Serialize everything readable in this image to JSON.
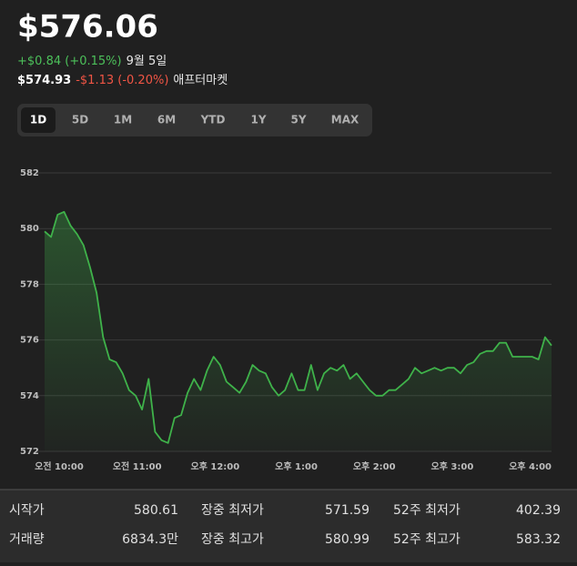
{
  "header": {
    "price": "$576.06",
    "change": "+$0.84 (+0.15%)",
    "date": "9월 5일",
    "after_price": "$574.93",
    "after_change": "-$1.13 (-0.20%)",
    "after_label": "애프터마켓"
  },
  "range_buttons": {
    "labels": [
      "1D",
      "5D",
      "1M",
      "6M",
      "YTD",
      "1Y",
      "5Y",
      "MAX"
    ],
    "selected": 0
  },
  "chart_data": {
    "type": "line",
    "color": "#3fb24a",
    "grid": true,
    "categories": [
      null,
      null,
      null,
      null,
      null,
      null,
      "오전 10:00",
      null,
      null,
      null,
      null,
      null,
      null,
      null,
      null,
      null,
      null,
      null,
      "오전 11:00",
      null,
      null,
      null,
      null,
      null,
      null,
      null,
      null,
      null,
      null,
      null,
      "오후 12:00",
      null,
      null,
      null,
      null,
      null,
      null,
      null,
      null,
      null,
      null,
      null,
      "오후 1:00",
      null,
      null,
      null,
      null,
      null,
      null,
      null,
      null,
      null,
      null,
      null,
      "오후 2:00",
      null,
      null,
      null,
      null,
      null,
      null,
      null,
      null,
      null,
      null,
      null,
      "오후 3:00",
      null,
      null,
      null,
      null,
      null,
      null,
      null,
      null,
      null,
      null,
      null,
      "오후 4:00"
    ],
    "values": [
      579.9,
      579.7,
      580.5,
      580.6,
      580.1,
      579.8,
      579.4,
      578.6,
      577.7,
      576.1,
      575.3,
      575.2,
      574.8,
      574.2,
      574.0,
      573.5,
      574.6,
      572.7,
      572.4,
      572.3,
      573.2,
      573.3,
      574.1,
      574.6,
      574.2,
      574.9,
      575.4,
      575.1,
      574.5,
      574.3,
      574.1,
      574.5,
      575.1,
      574.9,
      574.8,
      574.3,
      574.0,
      574.2,
      574.8,
      574.2,
      574.2,
      575.1,
      574.2,
      574.8,
      575.0,
      574.9,
      575.1,
      574.6,
      574.8,
      574.5,
      574.2,
      574.0,
      574.0,
      574.2,
      574.2,
      574.4,
      574.6,
      575.0,
      574.8,
      574.9,
      575.0,
      574.9,
      575.0,
      575.0,
      574.8,
      575.1,
      575.2,
      575.5,
      575.6,
      575.6,
      575.9,
      575.9,
      575.4,
      575.4,
      575.4,
      575.4,
      575.3,
      576.1,
      575.8
    ],
    "ylim": [
      572,
      582
    ],
    "yticks": [
      572,
      574,
      576,
      578,
      580,
      582
    ]
  },
  "stats": {
    "rows": [
      [
        [
          "시작가",
          "580.61"
        ],
        [
          "장중 최저가",
          "571.59"
        ],
        [
          "52주 최저가",
          "402.39"
        ]
      ],
      [
        [
          "거래량",
          "6834.3만"
        ],
        [
          "장중 최고가",
          "580.99"
        ],
        [
          "52주 최고가",
          "583.32"
        ]
      ]
    ]
  }
}
